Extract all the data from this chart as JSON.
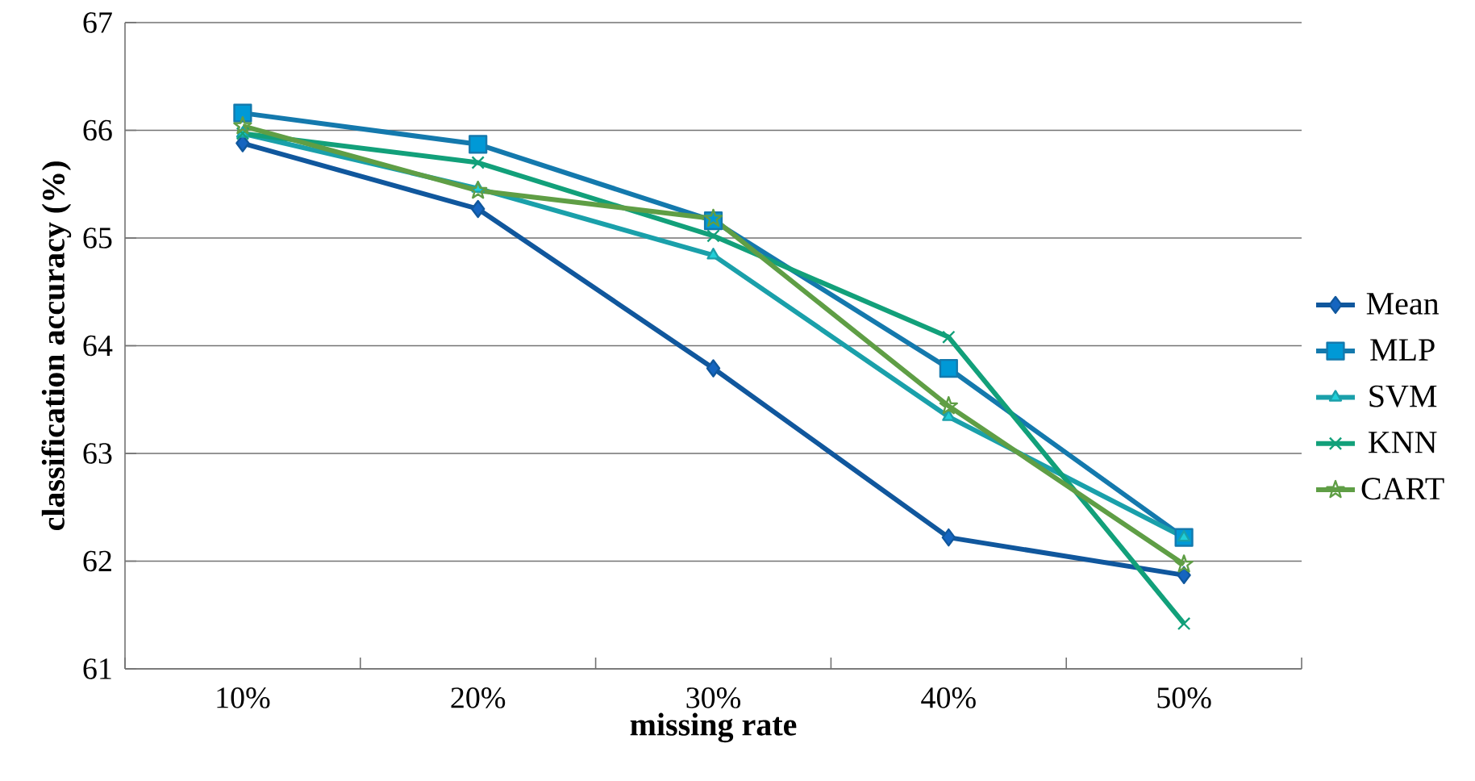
{
  "chart_data": {
    "type": "line",
    "xlabel": "missing rate",
    "ylabel": "classification accuracy (%)",
    "categories": [
      "10%",
      "20%",
      "30%",
      "40%",
      "50%"
    ],
    "ylim": [
      61,
      67
    ],
    "yticks": [
      61,
      62,
      63,
      64,
      65,
      66,
      67
    ],
    "grid": "y",
    "legend": "right",
    "line_style": "solid",
    "series": [
      {
        "name": "Mean",
        "color": "#10579d",
        "marker": "diamond",
        "values": [
          65.88,
          65.27,
          63.79,
          62.22,
          61.87
        ]
      },
      {
        "name": "MLP",
        "color": "#1479ad",
        "marker": "square",
        "values": [
          66.16,
          65.87,
          65.16,
          63.79,
          62.22
        ]
      },
      {
        "name": "SVM",
        "color": "#1aa0aa",
        "marker": "triangle",
        "values": [
          65.97,
          65.46,
          64.84,
          63.34,
          62.22
        ]
      },
      {
        "name": "KNN",
        "color": "#12a07a",
        "marker": "cross",
        "values": [
          65.97,
          65.7,
          65.02,
          64.08,
          61.42
        ]
      },
      {
        "name": "CART",
        "color": "#5f9e45",
        "marker": "star",
        "values": [
          66.04,
          65.44,
          65.18,
          63.44,
          61.97
        ]
      }
    ]
  }
}
